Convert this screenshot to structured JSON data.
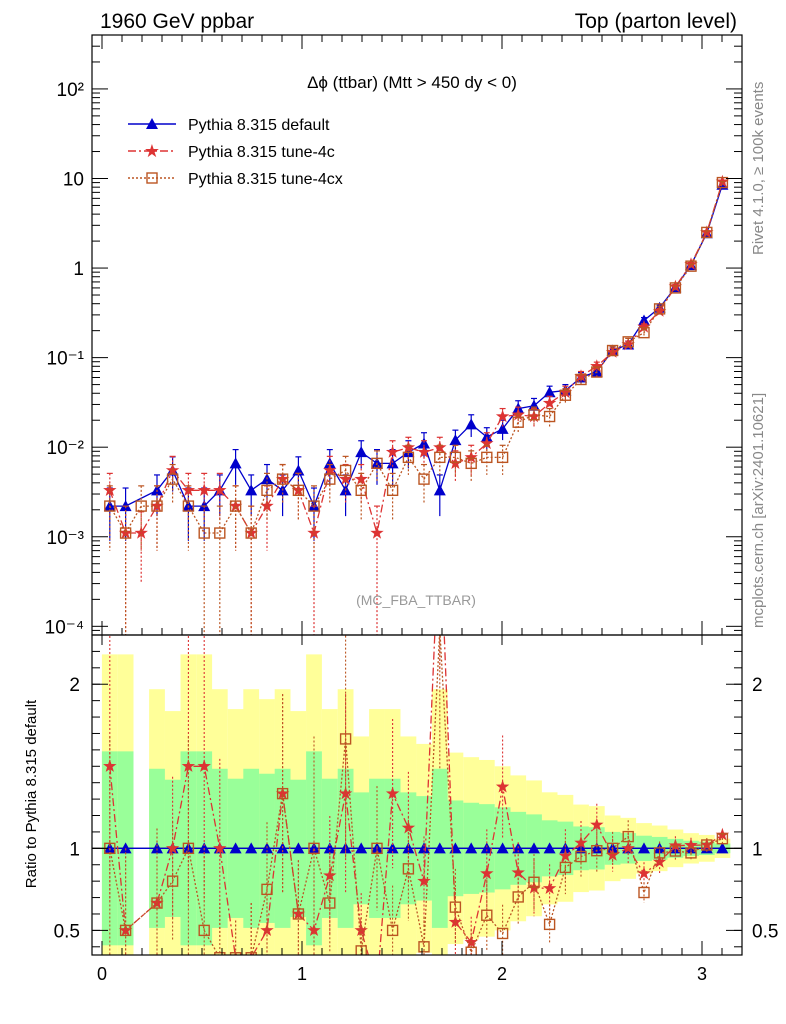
{
  "header": {
    "left": "1960 GeV ppbar",
    "right": "Top (parton level)"
  },
  "side_labels": {
    "rivet": "Rivet 4.1.0, ≥ 100k events",
    "mcplots": "mcplots.cern.ch [arXiv:2401.10621]"
  },
  "colors": {
    "default": "#0000cc",
    "tune4c": "#dd3333",
    "tune4cx": "#bb5522",
    "band_yellow": "#ffff99",
    "band_green": "#99ff99"
  },
  "chart_data": {
    "type": "line",
    "title": "Δϕ (ttbar) (Mtt > 450 dy < 0)",
    "watermark": "(MC_FBA_TTBAR)",
    "xlabel": "",
    "ylabel": "",
    "xlim": [
      -0.05,
      3.2
    ],
    "x_ticks": [
      "0",
      "1",
      "2",
      "3"
    ],
    "main": {
      "yscale": "log",
      "ylim": [
        8e-05,
        400
      ],
      "y_ticks": [
        {
          "value": 100,
          "label": "10²"
        },
        {
          "value": 10,
          "label": "10"
        },
        {
          "value": 1,
          "label": "1"
        },
        {
          "value": 0.1,
          "label": "10⁻¹"
        },
        {
          "value": 0.01,
          "label": "10⁻²"
        },
        {
          "value": 0.001,
          "label": "10⁻³"
        },
        {
          "value": 0.0001,
          "label": "10⁻⁴"
        }
      ]
    },
    "ratio": {
      "ylabel": "Ratio to Pythia 8.315 default",
      "ylim": [
        0.35,
        2.3
      ],
      "y_ticks": [
        "0.5",
        "1",
        "2"
      ]
    },
    "legend": [
      "Pythia 8.315 default",
      "Pythia 8.315 tune-4c",
      "Pythia 8.315 tune-4cx"
    ],
    "legend_position": "top-left",
    "x": [
      0.039,
      0.118,
      0.196,
      0.275,
      0.353,
      0.432,
      0.511,
      0.589,
      0.668,
      0.746,
      0.825,
      0.903,
      0.982,
      1.06,
      1.139,
      1.218,
      1.296,
      1.375,
      1.453,
      1.532,
      1.61,
      1.689,
      1.767,
      1.846,
      1.924,
      2.003,
      2.081,
      2.16,
      2.238,
      2.317,
      2.395,
      2.474,
      2.553,
      2.631,
      2.71,
      2.788,
      2.867,
      2.945,
      3.024,
      3.102
    ],
    "series": [
      {
        "name": "Pythia 8.315 default",
        "values": [
          0.0022,
          0.0022,
          null,
          0.0033,
          0.0055,
          0.0022,
          0.0022,
          0.0033,
          0.0066,
          0.0033,
          0.0044,
          0.0033,
          0.0055,
          0.0022,
          0.0066,
          0.0033,
          0.0088,
          0.0066,
          0.0066,
          0.0088,
          0.011,
          0.0033,
          0.012,
          0.018,
          0.013,
          0.016,
          0.027,
          0.029,
          0.041,
          0.043,
          0.06,
          0.07,
          0.12,
          0.14,
          0.26,
          0.36,
          0.61,
          1.08,
          2.45,
          8.5
        ],
        "errors": [
          0.0013,
          0.0013,
          null,
          0.0016,
          0.0023,
          0.0013,
          0.0013,
          0.0016,
          0.0028,
          0.0016,
          0.002,
          0.0016,
          0.0023,
          0.0013,
          0.0028,
          0.0016,
          0.003,
          0.0028,
          0.0028,
          0.003,
          0.0035,
          0.0016,
          0.0035,
          0.005,
          0.0035,
          0.004,
          0.006,
          0.006,
          0.007,
          0.007,
          0.008,
          0.009,
          0.012,
          0.013,
          0.02,
          0.025,
          0.035,
          0.05,
          0.1,
          0.25
        ]
      },
      {
        "name": "Pythia 8.315 tune-4c",
        "values": [
          0.0033,
          0.0011,
          0.0011,
          0.0022,
          0.0055,
          0.0033,
          0.0033,
          0.0033,
          0.0022,
          0.0011,
          0.0022,
          0.0044,
          0.0033,
          0.0011,
          0.0055,
          0.0044,
          0.0044,
          0.0011,
          0.0088,
          0.0099,
          0.0088,
          0.0099,
          0.0066,
          0.0077,
          0.011,
          0.022,
          0.023,
          0.022,
          0.031,
          0.041,
          0.062,
          0.08,
          0.115,
          0.14,
          0.22,
          0.33,
          0.62,
          1.1,
          2.5,
          9.2
        ],
        "errors": [
          0.0018,
          0.0011,
          0.0008,
          0.0015,
          0.0024,
          0.0018,
          0.0018,
          0.0018,
          0.0015,
          0.0011,
          0.0015,
          0.002,
          0.0018,
          0.0011,
          0.0024,
          0.002,
          0.002,
          0.0011,
          0.003,
          0.003,
          0.003,
          0.003,
          0.0025,
          0.0028,
          0.0035,
          0.005,
          0.005,
          0.005,
          0.006,
          0.007,
          0.008,
          0.009,
          0.012,
          0.013,
          0.018,
          0.024,
          0.035,
          0.05,
          0.1,
          0.26
        ]
      },
      {
        "name": "Pythia 8.315 tune-4cx",
        "values": [
          0.0022,
          0.0011,
          0.0022,
          0.0022,
          0.0044,
          0.0022,
          0.0011,
          0.0011,
          0.0022,
          0.0011,
          0.0033,
          0.0044,
          0.0033,
          0.0022,
          0.0044,
          0.0055,
          0.0033,
          0.0066,
          0.0033,
          0.0077,
          0.0044,
          0.0077,
          0.0077,
          0.0066,
          0.0077,
          0.0077,
          0.019,
          0.023,
          0.022,
          0.038,
          0.057,
          0.069,
          0.12,
          0.15,
          0.19,
          0.35,
          0.6,
          1.05,
          2.5,
          9.0
        ],
        "errors": [
          0.0015,
          0.0011,
          0.0015,
          0.0015,
          0.002,
          0.0015,
          0.0011,
          0.0011,
          0.0015,
          0.0011,
          0.0018,
          0.002,
          0.0018,
          0.0015,
          0.002,
          0.0024,
          0.0018,
          0.0025,
          0.0018,
          0.0028,
          0.002,
          0.0028,
          0.0028,
          0.0025,
          0.0028,
          0.0028,
          0.0045,
          0.005,
          0.005,
          0.007,
          0.008,
          0.009,
          0.012,
          0.014,
          0.016,
          0.025,
          0.035,
          0.05,
          0.1,
          0.25
        ]
      }
    ]
  }
}
